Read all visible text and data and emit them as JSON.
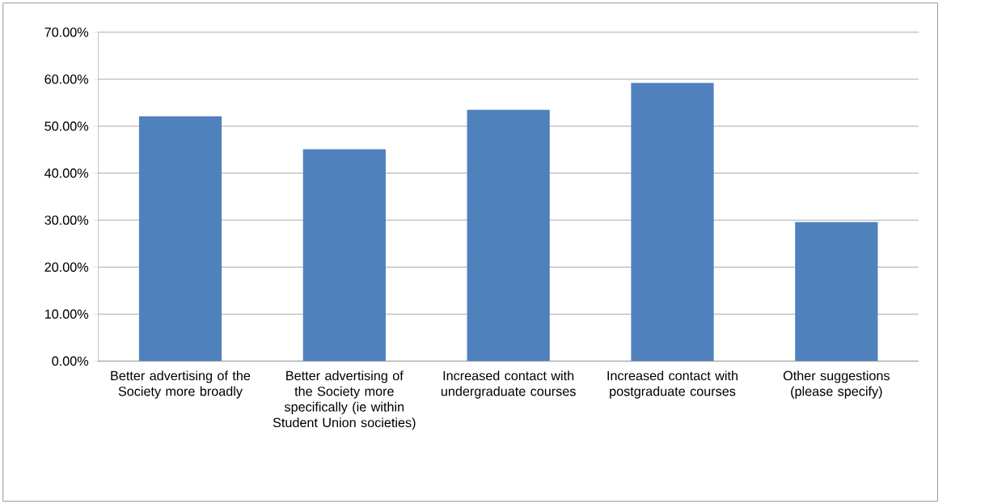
{
  "chart_data": {
    "type": "bar",
    "categories": [
      "Better advertising of the Society more broadly",
      "Better advertising of the Society more specifically (ie within Student Union societies)",
      "Increased contact with undergraduate courses",
      "Increased contact with postgraduate courses",
      "Other suggestions (please specify)"
    ],
    "values": [
      52.1,
      45.1,
      53.5,
      59.2,
      29.6
    ],
    "color": "#4f81bd",
    "ylim": [
      0,
      70
    ],
    "yticks": [
      {
        "value": 0,
        "label": "0.00%"
      },
      {
        "value": 10,
        "label": "10.00%"
      },
      {
        "value": 20,
        "label": "20.00%"
      },
      {
        "value": 30,
        "label": "30.00%"
      },
      {
        "value": 40,
        "label": "40.00%"
      },
      {
        "value": 50,
        "label": "50.00%"
      },
      {
        "value": 60,
        "label": "60.00%"
      },
      {
        "value": 70,
        "label": "70.00%"
      }
    ],
    "grid": "y"
  }
}
